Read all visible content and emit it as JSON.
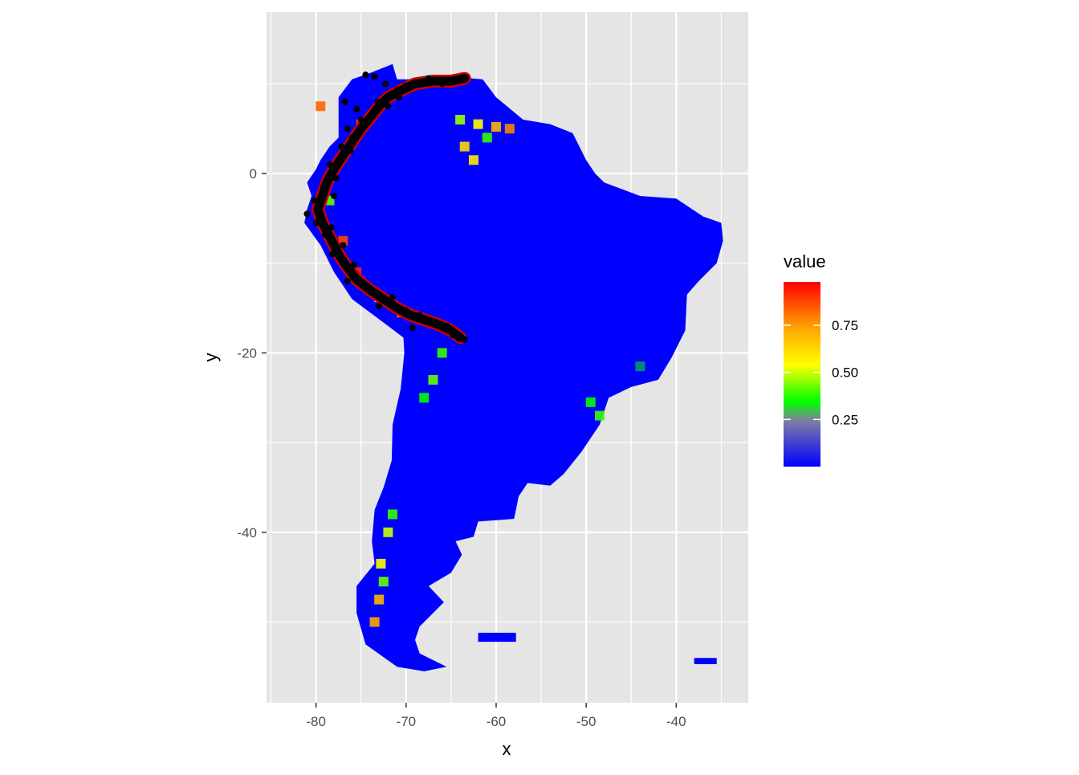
{
  "chart_data": {
    "type": "heatmap",
    "title": "",
    "xlabel": "x",
    "ylabel": "y",
    "xlim": [
      -85.5,
      -32
    ],
    "ylim": [
      -59,
      18
    ],
    "x_ticks": [
      -80,
      -70,
      -60,
      -50,
      -40
    ],
    "x_tick_labels": [
      "-80",
      "-70",
      "-60",
      "-50",
      "-40"
    ],
    "y_ticks": [
      0,
      -20,
      -40
    ],
    "y_tick_labels": [
      "0",
      "-20",
      "-40"
    ],
    "grid": true,
    "panel_background": "#e5e5e5",
    "grid_color": "#ffffff",
    "legend": {
      "title": "value",
      "placement": "right",
      "breaks": [
        0.25,
        0.5,
        0.75
      ],
      "labels": [
        "0.25",
        "0.50",
        "0.75"
      ],
      "range": [
        0.0,
        0.98
      ],
      "colors": [
        "#0000ff",
        "#00ff00",
        "#ffff00",
        "#ff0000"
      ]
    },
    "map_fill_color": "#0000ff",
    "land_outline": [
      [
        -77.5,
        8.5
      ],
      [
        -76.0,
        10.5
      ],
      [
        -74.0,
        11.2
      ],
      [
        -71.5,
        12.2
      ],
      [
        -71.0,
        10.5
      ],
      [
        -68.0,
        10.5
      ],
      [
        -64.0,
        10.7
      ],
      [
        -61.5,
        10.5
      ],
      [
        -60.0,
        8.5
      ],
      [
        -57.0,
        6.0
      ],
      [
        -54.0,
        5.5
      ],
      [
        -51.5,
        4.5
      ],
      [
        -50.0,
        1.5
      ],
      [
        -49.0,
        0.0
      ],
      [
        -48.0,
        -1.0
      ],
      [
        -44.0,
        -2.5
      ],
      [
        -40.0,
        -2.8
      ],
      [
        -37.0,
        -4.8
      ],
      [
        -35.0,
        -5.5
      ],
      [
        -34.8,
        -7.5
      ],
      [
        -35.5,
        -10.0
      ],
      [
        -37.5,
        -12.0
      ],
      [
        -38.8,
        -13.5
      ],
      [
        -39.0,
        -17.5
      ],
      [
        -40.5,
        -20.5
      ],
      [
        -42.0,
        -23.0
      ],
      [
        -45.0,
        -23.8
      ],
      [
        -47.5,
        -25.0
      ],
      [
        -48.5,
        -28.0
      ],
      [
        -50.5,
        -31.0
      ],
      [
        -52.5,
        -33.5
      ],
      [
        -54.0,
        -34.8
      ],
      [
        -56.5,
        -34.5
      ],
      [
        -57.5,
        -36.0
      ],
      [
        -58.0,
        -38.5
      ],
      [
        -62.0,
        -38.8
      ],
      [
        -62.5,
        -40.5
      ],
      [
        -64.5,
        -41.0
      ],
      [
        -63.8,
        -42.5
      ],
      [
        -65.0,
        -44.5
      ],
      [
        -67.5,
        -46.0
      ],
      [
        -65.8,
        -47.8
      ],
      [
        -68.5,
        -50.5
      ],
      [
        -69.0,
        -52.0
      ],
      [
        -68.5,
        -53.5
      ],
      [
        -65.5,
        -55.0
      ],
      [
        -68.0,
        -55.5
      ],
      [
        -71.0,
        -55.0
      ],
      [
        -74.5,
        -52.5
      ],
      [
        -75.5,
        -49.0
      ],
      [
        -75.5,
        -46.0
      ],
      [
        -73.5,
        -43.5
      ],
      [
        -73.8,
        -41.0
      ],
      [
        -73.5,
        -37.5
      ],
      [
        -72.5,
        -35.0
      ],
      [
        -71.6,
        -32.0
      ],
      [
        -71.5,
        -28.0
      ],
      [
        -70.6,
        -24.0
      ],
      [
        -70.2,
        -20.0
      ],
      [
        -70.3,
        -18.3
      ],
      [
        -72.0,
        -17.0
      ],
      [
        -76.0,
        -14.0
      ],
      [
        -78.0,
        -11.0
      ],
      [
        -79.5,
        -8.0
      ],
      [
        -81.3,
        -5.5
      ],
      [
        -81.0,
        -4.0
      ],
      [
        -80.5,
        -2.5
      ],
      [
        -81.0,
        -1.0
      ],
      [
        -80.0,
        0.5
      ],
      [
        -79.5,
        1.5
      ],
      [
        -78.5,
        3.0
      ],
      [
        -77.5,
        4.0
      ],
      [
        -77.5,
        6.5
      ]
    ],
    "islands": [
      [
        [
          -62.0,
          -51.2
        ],
        [
          -57.8,
          -51.2
        ],
        [
          -57.8,
          -52.2
        ],
        [
          -62.0,
          -52.2
        ]
      ],
      [
        [
          -38.0,
          -54.0
        ],
        [
          -35.5,
          -54.0
        ],
        [
          -35.5,
          -54.7
        ],
        [
          -38.0,
          -54.7
        ]
      ]
    ],
    "points_color": "#000000",
    "occurrence_track": [
      [
        -63.5,
        10.6
      ],
      [
        -65.0,
        10.3
      ],
      [
        -67.0,
        10.3
      ],
      [
        -69.0,
        10.0
      ],
      [
        -70.5,
        9.3
      ],
      [
        -72.0,
        8.5
      ],
      [
        -73.0,
        7.5
      ],
      [
        -74.0,
        6.2
      ],
      [
        -75.0,
        5.0
      ],
      [
        -76.0,
        3.5
      ],
      [
        -77.0,
        2.0
      ],
      [
        -78.0,
        0.5
      ],
      [
        -78.8,
        -1.0
      ],
      [
        -79.3,
        -2.5
      ],
      [
        -79.8,
        -4.0
      ],
      [
        -79.3,
        -5.5
      ],
      [
        -78.5,
        -7.0
      ],
      [
        -77.5,
        -9.0
      ],
      [
        -76.5,
        -10.5
      ],
      [
        -75.5,
        -11.8
      ],
      [
        -74.0,
        -13.0
      ],
      [
        -72.5,
        -14.0
      ],
      [
        -71.0,
        -15.0
      ],
      [
        -69.5,
        -15.8
      ],
      [
        -68.0,
        -16.3
      ],
      [
        -66.5,
        -16.8
      ],
      [
        -65.0,
        -17.5
      ],
      [
        -64.0,
        -18.3
      ]
    ],
    "occurrence_points": [
      [
        -74.5,
        11.0
      ],
      [
        -73.5,
        10.8
      ],
      [
        -72.3,
        10.0
      ],
      [
        -71.0,
        9.3
      ],
      [
        -70.0,
        9.8
      ],
      [
        -66.0,
        10.0
      ],
      [
        -64.5,
        10.4
      ],
      [
        -76.8,
        8.0
      ],
      [
        -75.5,
        7.2
      ],
      [
        -75.0,
        6.0
      ],
      [
        -76.5,
        5.0
      ],
      [
        -76.0,
        4.0
      ],
      [
        -77.2,
        3.0
      ],
      [
        -76.2,
        2.5
      ],
      [
        -77.5,
        1.5
      ],
      [
        -78.5,
        1.0
      ],
      [
        -77.8,
        -0.5
      ],
      [
        -79.2,
        -1.5
      ],
      [
        -78.0,
        -2.5
      ],
      [
        -80.2,
        -3.0
      ],
      [
        -81.0,
        -4.5
      ],
      [
        -80.0,
        -5.5
      ],
      [
        -78.3,
        -6.0
      ],
      [
        -79.0,
        -6.8
      ],
      [
        -77.0,
        -8.0
      ],
      [
        -78.2,
        -9.0
      ],
      [
        -75.8,
        -10.2
      ],
      [
        -76.5,
        -12.0
      ],
      [
        -74.3,
        -12.5
      ],
      [
        -73.0,
        -14.8
      ],
      [
        -71.5,
        -13.8
      ],
      [
        -70.0,
        -15.3
      ],
      [
        -68.5,
        -15.8
      ],
      [
        -69.3,
        -17.2
      ],
      [
        -65.5,
        -17.0
      ],
      [
        -64.8,
        -18.0
      ],
      [
        -63.5,
        -18.5
      ],
      [
        -73.2,
        8.0
      ],
      [
        -72.0,
        7.5
      ],
      [
        -70.8,
        8.5
      ],
      [
        -68.5,
        10.2
      ],
      [
        -67.5,
        10.6
      ]
    ],
    "hotspots": [
      {
        "x": -62.0,
        "y": 5.5,
        "value": 0.5
      },
      {
        "x": -60.0,
        "y": 5.2,
        "value": 0.7
      },
      {
        "x": -63.5,
        "y": 3.0,
        "value": 0.6
      },
      {
        "x": -61.0,
        "y": 4.0,
        "value": 0.3
      },
      {
        "x": -64.0,
        "y": 6.0,
        "value": 0.4
      },
      {
        "x": -58.5,
        "y": 5.0,
        "value": 0.8
      },
      {
        "x": -62.5,
        "y": 1.5,
        "value": 0.55
      },
      {
        "x": -66.0,
        "y": -20.0,
        "value": 0.3
      },
      {
        "x": -67.0,
        "y": -23.0,
        "value": 0.35
      },
      {
        "x": -68.0,
        "y": -25.0,
        "value": 0.25
      },
      {
        "x": -71.5,
        "y": -38.0,
        "value": 0.3
      },
      {
        "x": -72.0,
        "y": -40.0,
        "value": 0.45
      },
      {
        "x": -72.8,
        "y": -43.5,
        "value": 0.5
      },
      {
        "x": -73.0,
        "y": -47.5,
        "value": 0.7
      },
      {
        "x": -73.5,
        "y": -50.0,
        "value": 0.75
      },
      {
        "x": -72.5,
        "y": -45.5,
        "value": 0.35
      },
      {
        "x": -49.5,
        "y": -25.5,
        "value": 0.25
      },
      {
        "x": -48.5,
        "y": -27.0,
        "value": 0.3
      },
      {
        "x": -44.0,
        "y": -21.5,
        "value": 0.15
      },
      {
        "x": -78.5,
        "y": -3.0,
        "value": 0.35
      },
      {
        "x": -77.0,
        "y": -7.5,
        "value": 0.9
      },
      {
        "x": -75.5,
        "y": -11.0,
        "value": 0.95
      },
      {
        "x": -73.0,
        "y": -13.8,
        "value": 0.6
      },
      {
        "x": -70.5,
        "y": -15.5,
        "value": 0.8
      },
      {
        "x": -75.0,
        "y": 5.5,
        "value": 0.9
      },
      {
        "x": -79.5,
        "y": 7.5,
        "value": 0.85
      }
    ]
  }
}
